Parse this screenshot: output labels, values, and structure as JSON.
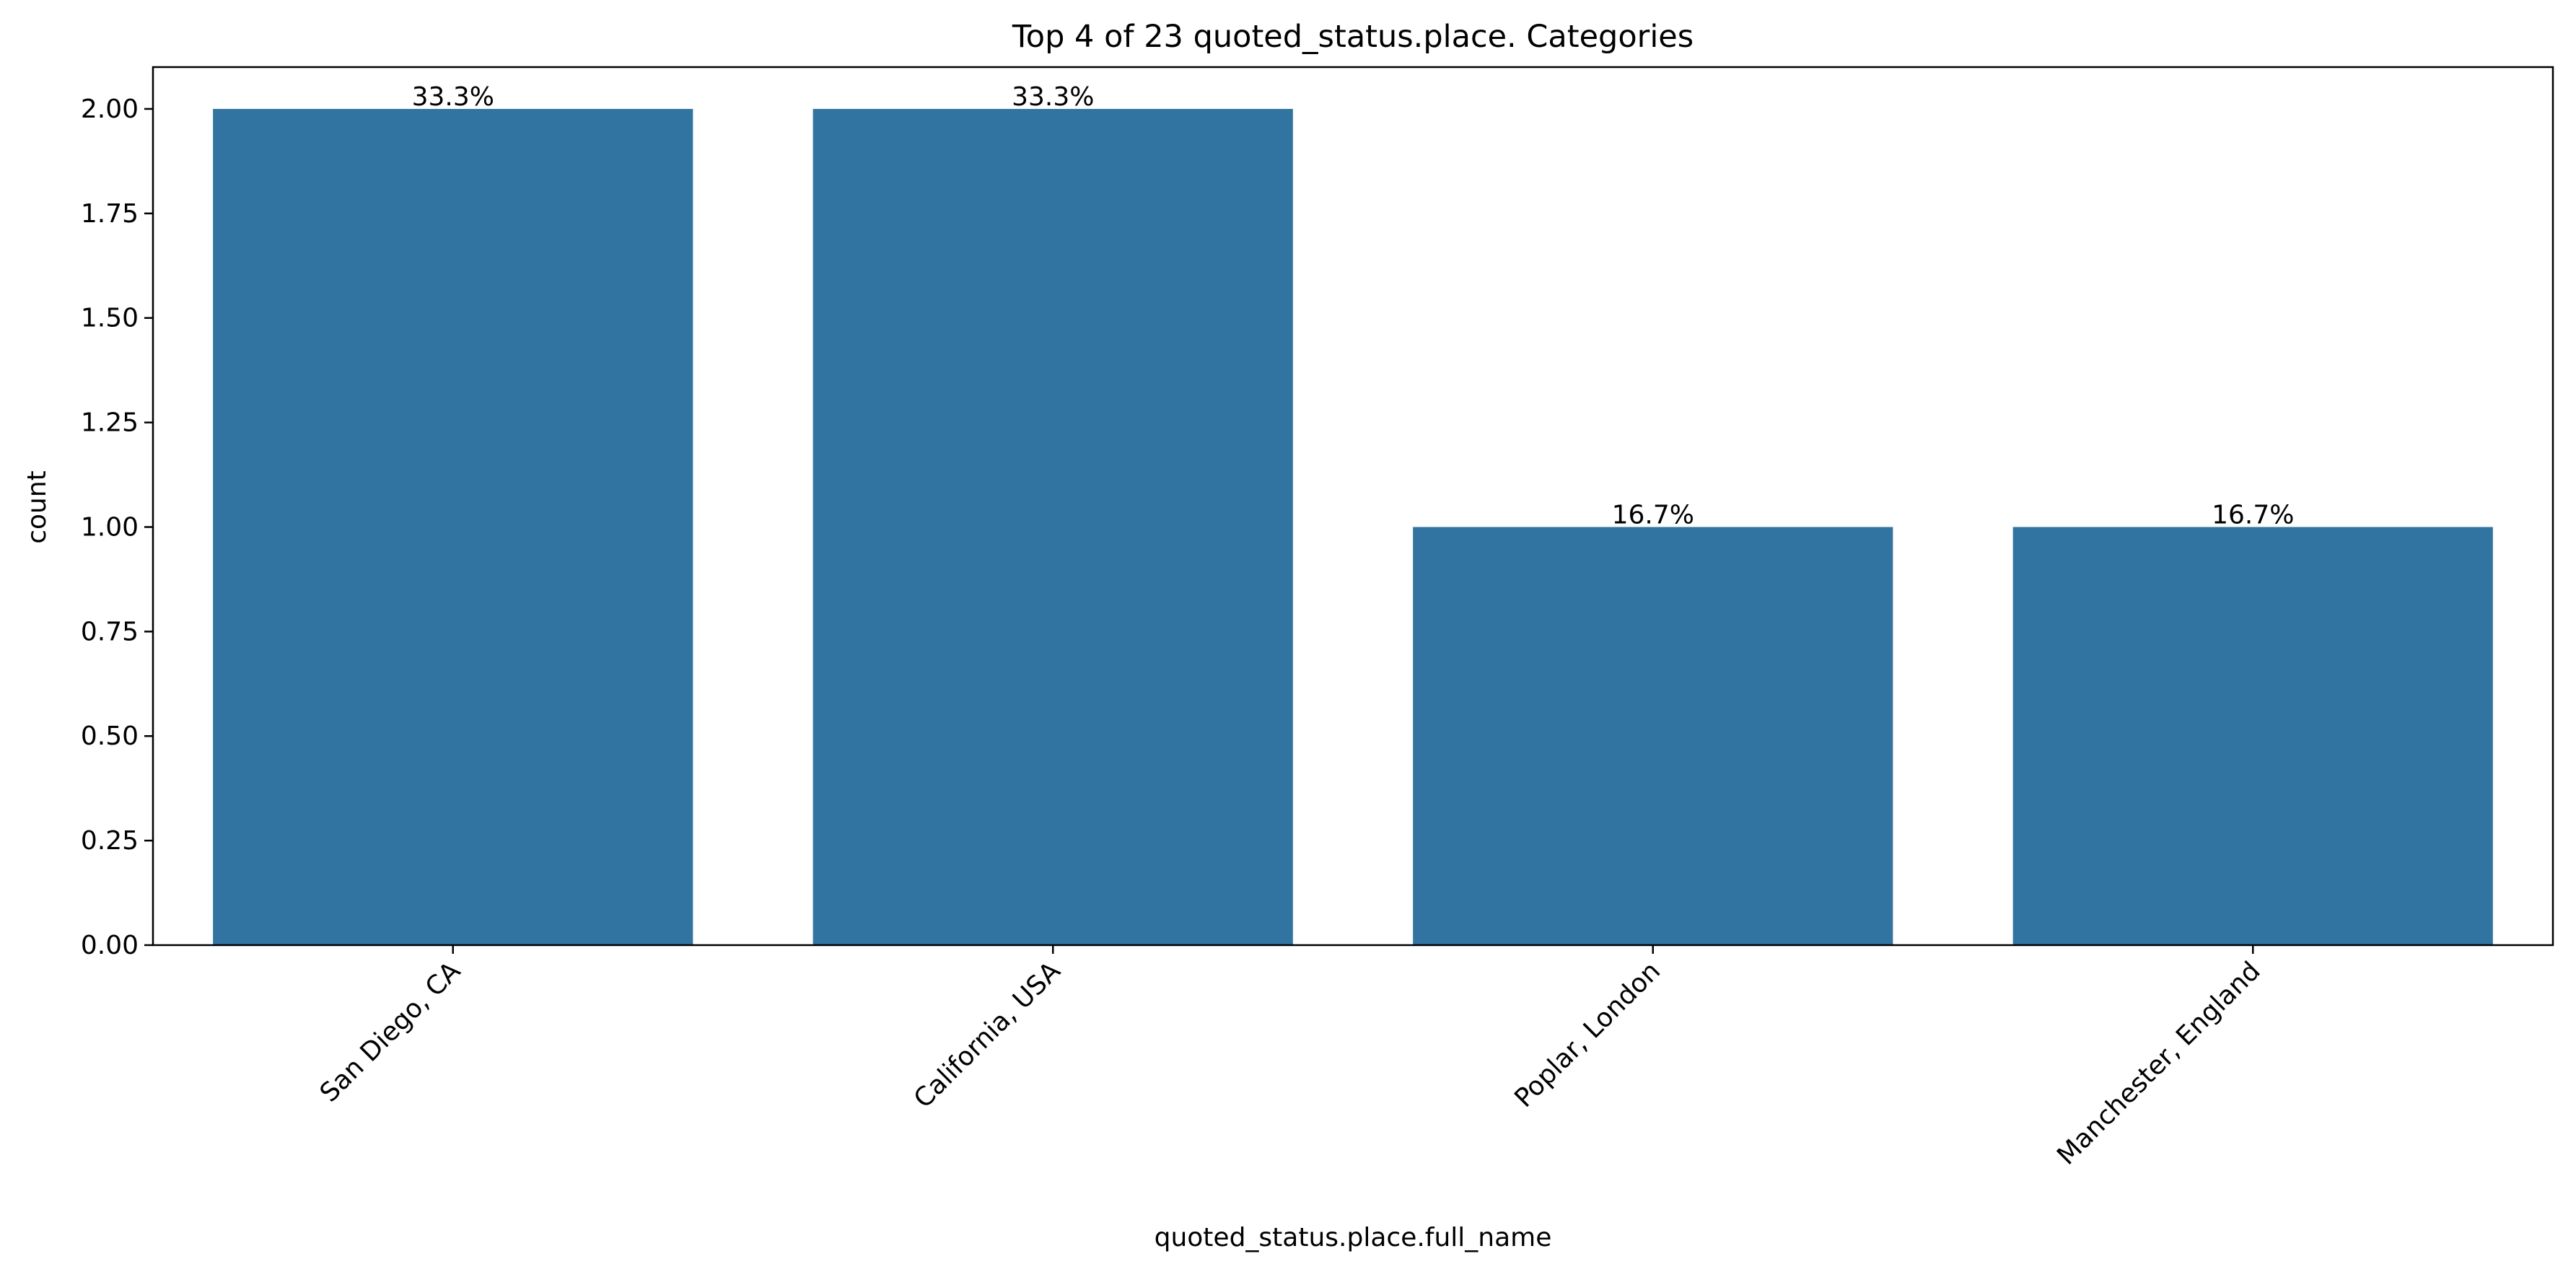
{
  "chart_data": {
    "type": "bar",
    "title": "Top 4 of 23 quoted_status.place. Categories",
    "xlabel": "quoted_status.place.full_name",
    "ylabel": "count",
    "categories": [
      "San Diego, CA",
      "California, USA",
      "Poplar, London",
      "Manchester, England"
    ],
    "values": [
      2,
      2,
      1,
      1
    ],
    "data_labels": [
      "33.3%",
      "33.3%",
      "16.7%",
      "16.7%"
    ],
    "yticks": [
      "0.00",
      "0.25",
      "0.50",
      "0.75",
      "1.00",
      "1.25",
      "1.50",
      "1.75",
      "2.00"
    ],
    "ylim": [
      0,
      2.1
    ],
    "grid": false,
    "bar_color": "#3274a1",
    "xtick_rotation_deg": 45
  }
}
